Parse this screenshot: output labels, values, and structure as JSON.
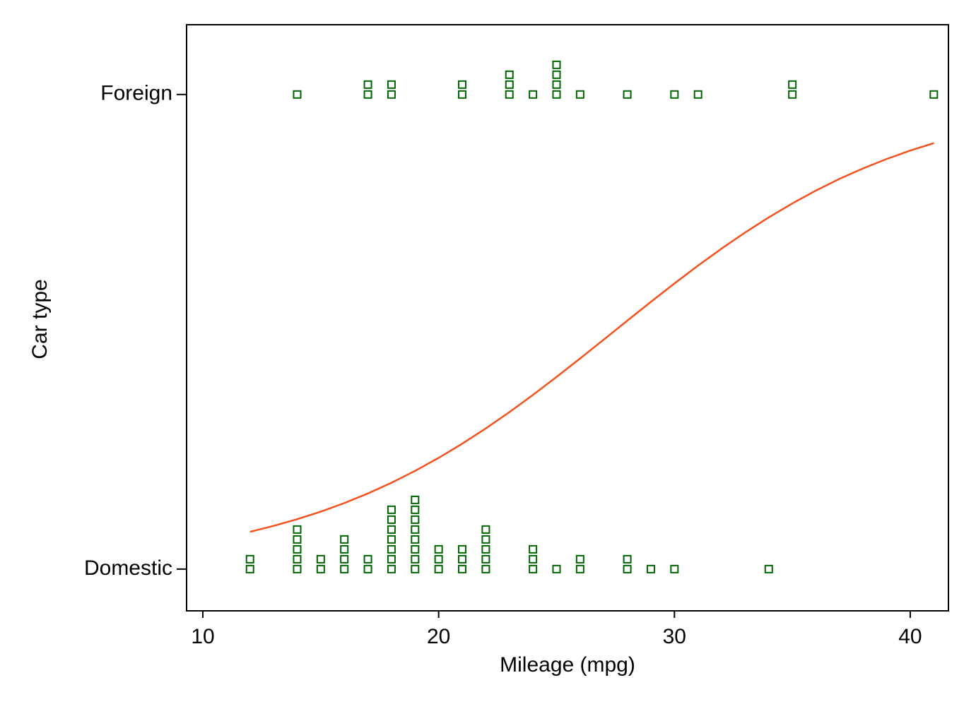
{
  "chart_data": {
    "type": "scatter",
    "xlabel": "Mileage (mpg)",
    "ylabel": "Car type",
    "xlim": [
      9.31,
      41.62
    ],
    "xticks": [
      10,
      20,
      30,
      40
    ],
    "ylim": [
      -0.088,
      1.147
    ],
    "yticks": [
      {
        "value": 0,
        "label": "Domestic"
      },
      {
        "value": 1,
        "label": "Foreign"
      }
    ],
    "series": [
      {
        "type": "scatter",
        "color": "#006400",
        "marker": "hollow-square",
        "stacked": true,
        "x": [
          12,
          12,
          14,
          14,
          14,
          14,
          14,
          15,
          15,
          16,
          16,
          16,
          16,
          17,
          17,
          18,
          18,
          18,
          18,
          18,
          18,
          18,
          19,
          19,
          19,
          19,
          19,
          19,
          19,
          19,
          20,
          20,
          20,
          21,
          21,
          21,
          22,
          22,
          22,
          22,
          22,
          24,
          24,
          24,
          25,
          26,
          26,
          28,
          28,
          29,
          30,
          34,
          14,
          17,
          17,
          18,
          18,
          21,
          21,
          23,
          23,
          23,
          24,
          25,
          25,
          25,
          25,
          26,
          28,
          30,
          31,
          35,
          35,
          41
        ],
        "y": [
          0,
          0,
          0,
          0,
          0,
          0,
          0,
          0,
          0,
          0,
          0,
          0,
          0,
          0,
          0,
          0,
          0,
          0,
          0,
          0,
          0,
          0,
          0,
          0,
          0,
          0,
          0,
          0,
          0,
          0,
          0,
          0,
          0,
          0,
          0,
          0,
          0,
          0,
          0,
          0,
          0,
          0,
          0,
          0,
          0,
          0,
          0,
          0,
          0,
          0,
          0,
          0,
          1,
          1,
          1,
          1,
          1,
          1,
          1,
          1,
          1,
          1,
          1,
          1,
          1,
          1,
          1,
          1,
          1,
          1,
          1,
          1,
          1,
          1
        ]
      },
      {
        "type": "line",
        "color": "#f4511e",
        "x": [
          12,
          13,
          14,
          15,
          16,
          17,
          18,
          19,
          20,
          21,
          22,
          23,
          24,
          25,
          26,
          27,
          28,
          29,
          30,
          31,
          32,
          33,
          34,
          35,
          36,
          37,
          38,
          39,
          40,
          41
        ],
        "y": [
          0.0786,
          0.091,
          0.1051,
          0.121,
          0.1391,
          0.1593,
          0.1819,
          0.2069,
          0.2343,
          0.2642,
          0.2964,
          0.3307,
          0.367,
          0.4048,
          0.4438,
          0.4835,
          0.5234,
          0.563,
          0.6018,
          0.6394,
          0.6753,
          0.7093,
          0.7411,
          0.7705,
          0.7976,
          0.8222,
          0.8442,
          0.8641,
          0.8818,
          0.8975
        ]
      }
    ]
  }
}
